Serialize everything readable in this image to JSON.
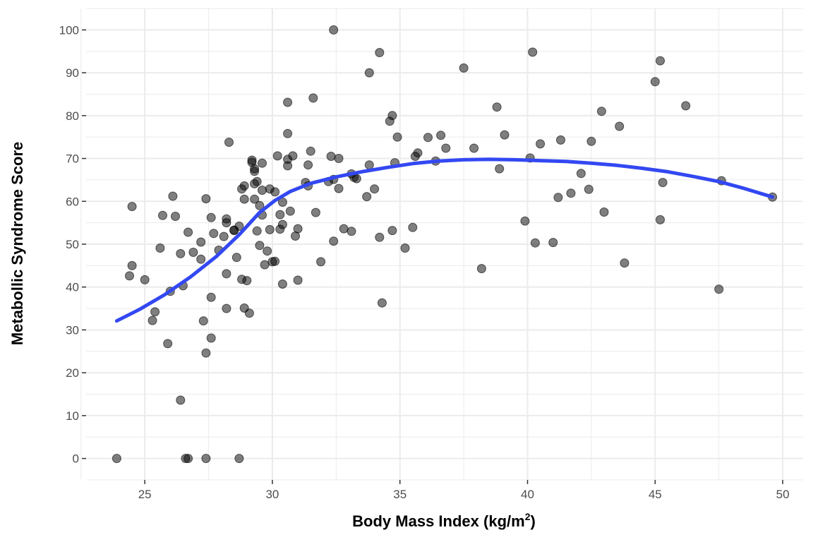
{
  "chart_data": {
    "type": "scatter",
    "title": "",
    "xlabel": "Body Mass Index (kg/m",
    "xlabel_superscript": "2",
    "xlabel_suffix": ")",
    "ylabel": "Metabollic Syndrome Score",
    "xlim": [
      22.7,
      50.8
    ],
    "ylim": [
      -5,
      105
    ],
    "x_ticks": [
      25,
      30,
      35,
      40,
      45,
      50
    ],
    "y_ticks": [
      0,
      10,
      20,
      30,
      40,
      50,
      60,
      70,
      80,
      90,
      100
    ],
    "grid": true,
    "legend": "none",
    "colors": {
      "points": "#000000",
      "trend": "#3348f2",
      "grid": "#ebebeb"
    },
    "points": [
      [
        23.9,
        0
      ],
      [
        24.4,
        42.6
      ],
      [
        24.5,
        45
      ],
      [
        24.5,
        58.8
      ],
      [
        25,
        41.7
      ],
      [
        25.3,
        32.2
      ],
      [
        25.4,
        34.2
      ],
      [
        25.6,
        49.1
      ],
      [
        25.7,
        56.7
      ],
      [
        25.9,
        26.8
      ],
      [
        26,
        39
      ],
      [
        26.1,
        61.2
      ],
      [
        26.2,
        56.5
      ],
      [
        26.4,
        13.6
      ],
      [
        26.4,
        47.8
      ],
      [
        26.5,
        40.3
      ],
      [
        26.6,
        0
      ],
      [
        26.7,
        52.8
      ],
      [
        26.7,
        0
      ],
      [
        26.9,
        48.1
      ],
      [
        27.2,
        50.5
      ],
      [
        27.2,
        46.5
      ],
      [
        27.3,
        32.1
      ],
      [
        27.4,
        60.6
      ],
      [
        27.4,
        24.6
      ],
      [
        27.4,
        0
      ],
      [
        27.6,
        28.1
      ],
      [
        27.6,
        37.6
      ],
      [
        27.6,
        56.2
      ],
      [
        27.7,
        52.5
      ],
      [
        27.9,
        48.6
      ],
      [
        28.1,
        51.8
      ],
      [
        28.2,
        55.9
      ],
      [
        28.2,
        55
      ],
      [
        28.2,
        43.1
      ],
      [
        28.2,
        35
      ],
      [
        28.3,
        73.8
      ],
      [
        28.5,
        53.3
      ],
      [
        28.5,
        53.2
      ],
      [
        28.6,
        46.9
      ],
      [
        28.7,
        54.2
      ],
      [
        28.7,
        0
      ],
      [
        28.8,
        41.8
      ],
      [
        28.8,
        62.9
      ],
      [
        28.9,
        63.6
      ],
      [
        28.9,
        35.1
      ],
      [
        28.9,
        60.5
      ],
      [
        29,
        41.5
      ],
      [
        29.1,
        33.9
      ],
      [
        29.2,
        69.6
      ],
      [
        29.2,
        69.1
      ],
      [
        29.3,
        67
      ],
      [
        29.3,
        67.6
      ],
      [
        29.3,
        64.1
      ],
      [
        29.3,
        60.5
      ],
      [
        29.4,
        64.6
      ],
      [
        29.4,
        53.1
      ],
      [
        29.5,
        59
      ],
      [
        29.5,
        49.7
      ],
      [
        29.6,
        68.9
      ],
      [
        29.6,
        62.6
      ],
      [
        29.6,
        56.8
      ],
      [
        29.7,
        45.2
      ],
      [
        29.8,
        48.4
      ],
      [
        29.9,
        62.9
      ],
      [
        29.9,
        53.4
      ],
      [
        30,
        45.9
      ],
      [
        30.1,
        46
      ],
      [
        30.1,
        62.2
      ],
      [
        30.2,
        70.6
      ],
      [
        30.3,
        53.5
      ],
      [
        30.3,
        56.9
      ],
      [
        30.4,
        59.8
      ],
      [
        30.4,
        54.6
      ],
      [
        30.4,
        40.7
      ],
      [
        30.6,
        83.1
      ],
      [
        30.6,
        75.8
      ],
      [
        30.6,
        69.8
      ],
      [
        30.6,
        68.3
      ],
      [
        30.7,
        57.7
      ],
      [
        30.8,
        70.6
      ],
      [
        30.9,
        51.9
      ],
      [
        31,
        53.6
      ],
      [
        31,
        41.6
      ],
      [
        31.3,
        64.4
      ],
      [
        31.4,
        68.5
      ],
      [
        31.4,
        63.6
      ],
      [
        31.5,
        71.7
      ],
      [
        31.6,
        84.1
      ],
      [
        31.7,
        57.4
      ],
      [
        31.9,
        45.9
      ],
      [
        32.2,
        64.6
      ],
      [
        32.3,
        70.5
      ],
      [
        32.4,
        65.1
      ],
      [
        32.4,
        50.7
      ],
      [
        32.4,
        100
      ],
      [
        32.6,
        63
      ],
      [
        32.6,
        70
      ],
      [
        32.8,
        53.6
      ],
      [
        33.1,
        66.4
      ],
      [
        33.1,
        53
      ],
      [
        33.2,
        65.6
      ],
      [
        33.3,
        65.3
      ],
      [
        33.7,
        61.1
      ],
      [
        33.8,
        90
      ],
      [
        33.8,
        68.5
      ],
      [
        34,
        62.9
      ],
      [
        34.2,
        94.7
      ],
      [
        34.2,
        51.6
      ],
      [
        34.3,
        36.3
      ],
      [
        34.6,
        78.7
      ],
      [
        34.7,
        80
      ],
      [
        34.7,
        53.2
      ],
      [
        34.8,
        69
      ],
      [
        34.9,
        75
      ],
      [
        35.2,
        49.1
      ],
      [
        35.5,
        53.9
      ],
      [
        35.6,
        70.5
      ],
      [
        35.7,
        71.3
      ],
      [
        36.1,
        74.9
      ],
      [
        36.4,
        69.4
      ],
      [
        36.6,
        75.4
      ],
      [
        36.8,
        72.4
      ],
      [
        37.5,
        91.1
      ],
      [
        37.9,
        72.4
      ],
      [
        38.2,
        44.3
      ],
      [
        38.8,
        82
      ],
      [
        38.9,
        67.6
      ],
      [
        39.1,
        75.5
      ],
      [
        39.9,
        55.4
      ],
      [
        40.1,
        70.1
      ],
      [
        40.2,
        94.8
      ],
      [
        40.3,
        50.3
      ],
      [
        40.5,
        73.4
      ],
      [
        41,
        50.4
      ],
      [
        41.2,
        60.9
      ],
      [
        41.3,
        74.3
      ],
      [
        41.7,
        61.9
      ],
      [
        42.1,
        66.5
      ],
      [
        42.4,
        62.8
      ],
      [
        42.5,
        74
      ],
      [
        42.9,
        81
      ],
      [
        43,
        57.5
      ],
      [
        43.6,
        77.5
      ],
      [
        43.8,
        45.6
      ],
      [
        45,
        87.9
      ],
      [
        45.2,
        92.8
      ],
      [
        45.2,
        55.7
      ],
      [
        45.3,
        64.4
      ],
      [
        46.2,
        82.3
      ],
      [
        47.5,
        39.5
      ],
      [
        47.6,
        64.8
      ],
      [
        49.6,
        61
      ]
    ],
    "trend": [
      [
        23.9,
        32.1
      ],
      [
        24.8,
        34.8
      ],
      [
        25.8,
        38.3
      ],
      [
        26.8,
        42.4
      ],
      [
        27.8,
        47.1
      ],
      [
        28.7,
        52.2
      ],
      [
        29.5,
        57.4
      ],
      [
        30.1,
        60.2
      ],
      [
        30.7,
        62.3
      ],
      [
        31.5,
        64.2
      ],
      [
        32.5,
        65.7
      ],
      [
        33.5,
        66.9
      ],
      [
        34.5,
        67.9
      ],
      [
        35.5,
        68.8
      ],
      [
        36.5,
        69.4
      ],
      [
        37.5,
        69.7
      ],
      [
        38.5,
        69.8
      ],
      [
        39.5,
        69.7
      ],
      [
        40.5,
        69.5
      ],
      [
        41.5,
        69.3
      ],
      [
        42.5,
        68.9
      ],
      [
        43.5,
        68.4
      ],
      [
        44.5,
        67.7
      ],
      [
        45.5,
        66.9
      ],
      [
        46.5,
        65.8
      ],
      [
        47.5,
        64.6
      ],
      [
        48.5,
        63
      ],
      [
        49.6,
        61
      ]
    ]
  }
}
